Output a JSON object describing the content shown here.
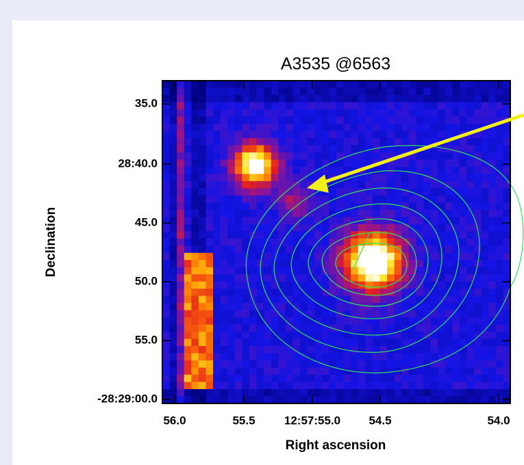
{
  "title": "A3535 @6563",
  "x_axis": {
    "label": "Right ascension",
    "tick_labels": [
      "56.0",
      "55.5",
      "12:57:55.0",
      "54.5",
      "54.0"
    ]
  },
  "y_axis": {
    "label": "Declination",
    "tick_labels": [
      "35.0",
      "28:40.0",
      "45.0",
      "50.0",
      "55.0",
      "-28:29:00.0"
    ]
  }
}
